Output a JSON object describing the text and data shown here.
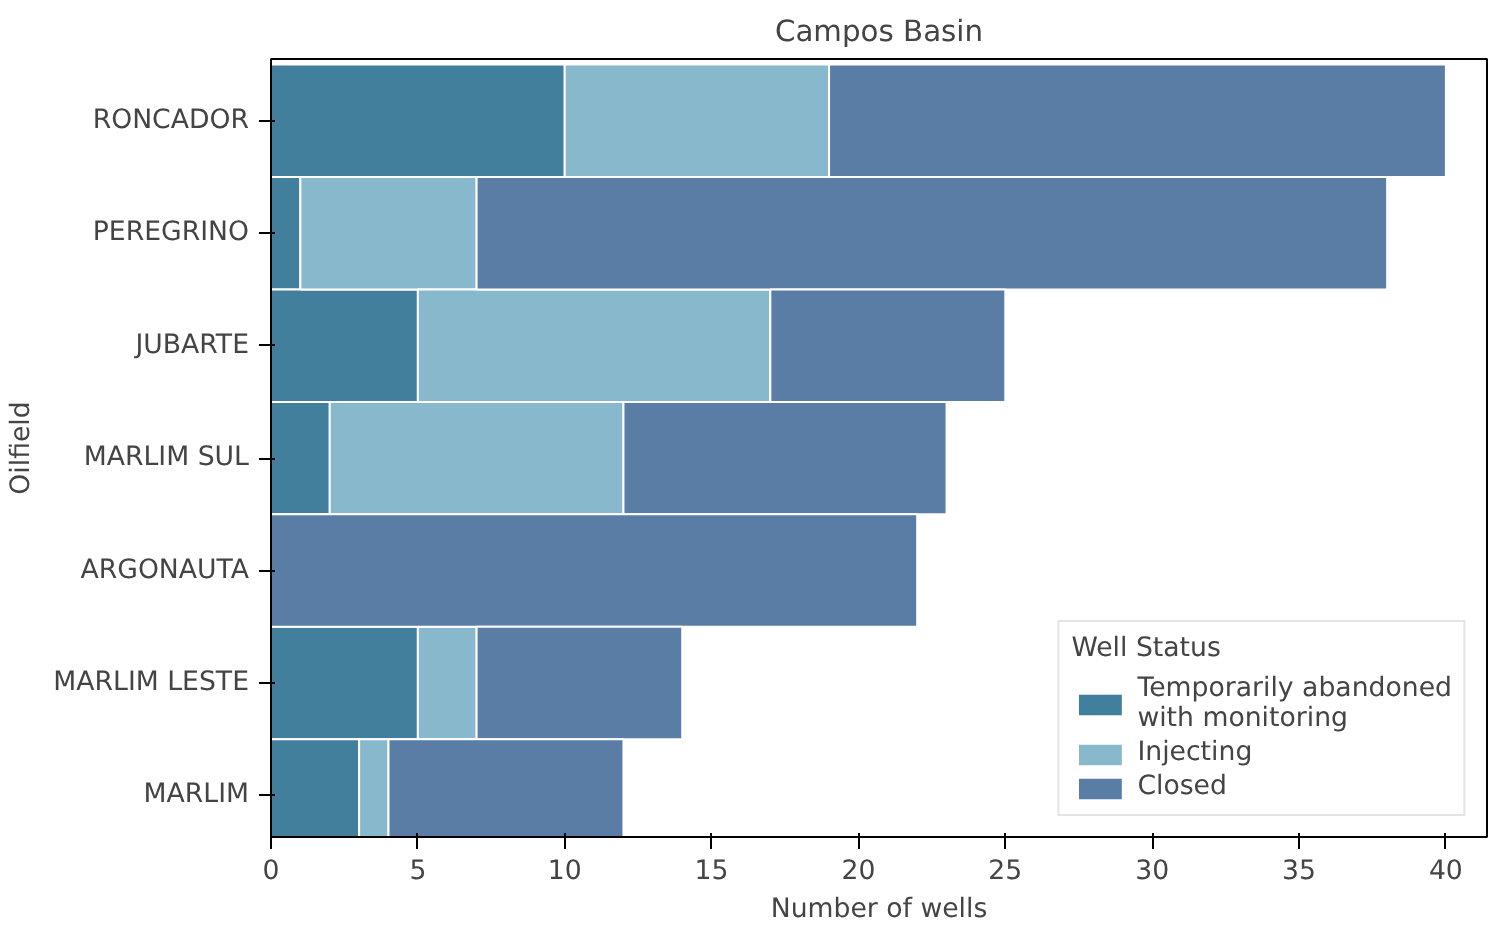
{
  "chart_data": {
    "type": "bar",
    "orientation": "horizontal",
    "stacked": true,
    "title": "Campos Basin",
    "xlabel": "Number of wells",
    "ylabel": "Oilfield",
    "legend_title": "Well Status",
    "legend": "bottom right",
    "grid": false,
    "categories": [
      "RONCADOR",
      "PEREGRINO",
      "JUBARTE",
      "MARLIM SUL",
      "ARGONAUTA",
      "MARLIM LESTE",
      "MARLIM"
    ],
    "xlim": [
      0,
      41.4
    ],
    "xticks": [
      0,
      5,
      10,
      15,
      20,
      25,
      30,
      35,
      40
    ],
    "series": [
      {
        "name": "Temporarily abandoned\nwith monitoring",
        "color": "#427f9d",
        "values": [
          10,
          1,
          5,
          2,
          0,
          5,
          3
        ]
      },
      {
        "name": "Injecting",
        "color": "#87b8cc",
        "values": [
          9,
          6,
          12,
          10,
          0,
          2,
          1
        ]
      },
      {
        "name": "Closed",
        "color": "#5a7da5",
        "values": [
          21,
          31,
          8,
          11,
          22,
          7,
          8
        ]
      }
    ]
  }
}
